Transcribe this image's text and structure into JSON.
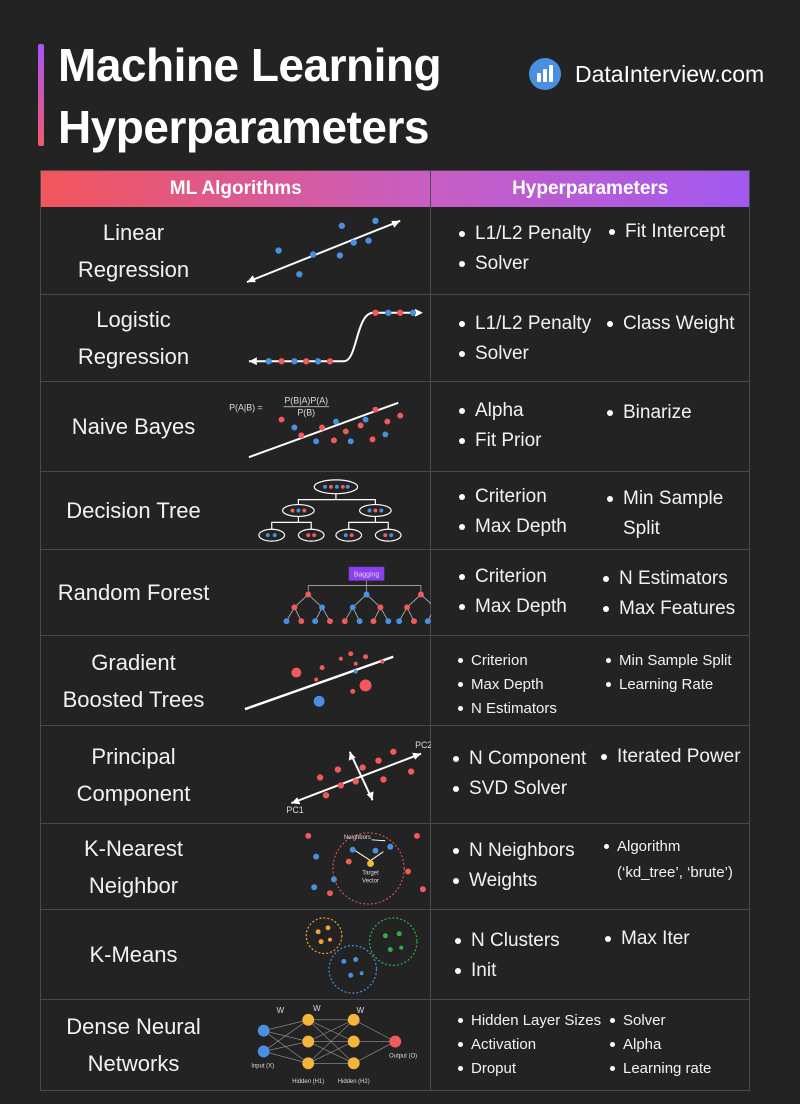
{
  "title": [
    "Machine Learning",
    "Hyperparameters"
  ],
  "brand": {
    "text": "DataInterview.com",
    "logo_icon": "bar-chart-logo-icon"
  },
  "colors": {
    "red": "#f25a5a",
    "blue": "#4a90e2",
    "orange": "#f5b43a",
    "green": "#2db34a",
    "purple": "#a259f0"
  },
  "table": {
    "headers": [
      "ML Algorithms",
      "Hyperparameters"
    ],
    "rows": [
      {
        "name": "Linear\nRegression",
        "hp": [
          "L1/L2 Penalty",
          "Fit Intercept",
          "Solver"
        ]
      },
      {
        "name": "Logistic\nRegression",
        "hp": [
          "L1/L2 Penalty",
          "Class Weight",
          "Solver"
        ]
      },
      {
        "name": "Naive Bayes",
        "formula": [
          "P(A|B) =",
          "P(B|A)P(A)",
          "P(B)"
        ],
        "hp": [
          "Alpha",
          "Binarize",
          "Fit Prior"
        ]
      },
      {
        "name": "Decision Tree",
        "hp": [
          "Criterion",
          "Min Sample",
          "Split",
          "Max Depth"
        ]
      },
      {
        "name": "Random Forest",
        "bagging": "Bagging",
        "hp": [
          "Criterion",
          "N Estimators",
          "Max Depth",
          "Max Features"
        ]
      },
      {
        "name": "Gradient\nBoosted Trees",
        "hp": [
          "Criterion",
          "Min Sample Split",
          "Max Depth",
          "Learning Rate",
          "N Estimators"
        ]
      },
      {
        "name": "Principal\nComponent",
        "pc": [
          "PC2",
          "PC1"
        ],
        "hp": [
          "N Component",
          "Iterated Power",
          "SVD Solver"
        ]
      },
      {
        "name": "K-Nearest\nNeighbor",
        "knn": [
          "Neighbors",
          "Target",
          "Vector"
        ],
        "hp": [
          "N Neighbors",
          "Algorithm",
          "(‘kd_tree’, ‘brute’)",
          "Weights"
        ]
      },
      {
        "name": "K-Means",
        "hp": [
          "N Clusters",
          "Max Iter",
          "Init"
        ]
      },
      {
        "name": "Dense Neural\nNetworks",
        "nn": [
          "W",
          "W",
          "W",
          "Input (X)",
          "Hidden (H1)",
          "Hidden (H2)",
          "Output (O)"
        ],
        "hp": [
          "Hidden Layer Sizes",
          "Solver",
          "Activation",
          "Alpha",
          "Droput",
          "Learning rate"
        ]
      }
    ]
  }
}
